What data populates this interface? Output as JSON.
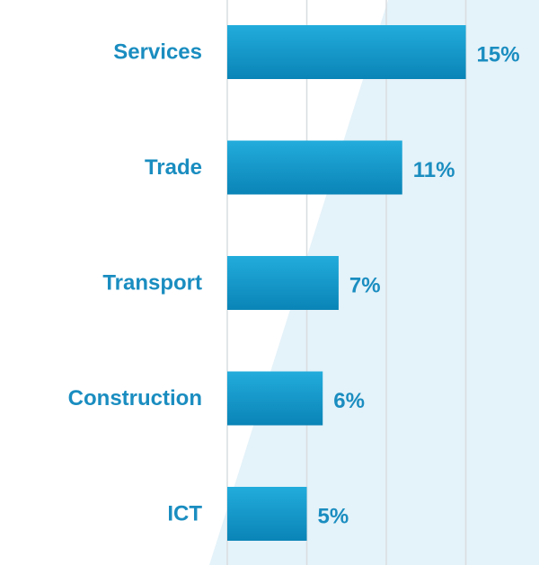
{
  "chart_data": {
    "type": "bar",
    "orientation": "horizontal",
    "categories": [
      "Services",
      "Trade",
      "Transport",
      "Construction",
      "ICT"
    ],
    "values": [
      15,
      11,
      7,
      6,
      5
    ],
    "value_labels": [
      "15%",
      "11%",
      "7%",
      "6%",
      "5%"
    ],
    "color": "#1399cb",
    "xlim": [
      0,
      19.6
    ],
    "xticks": [
      0,
      5,
      10,
      15
    ],
    "grid": true
  }
}
